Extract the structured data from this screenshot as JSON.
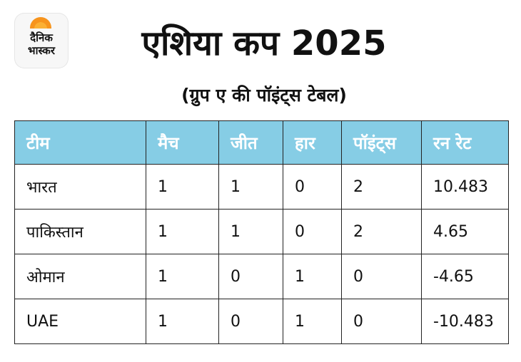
{
  "logo": {
    "line1": "दैनिक",
    "line2": "भास्कर"
  },
  "title": "एशिया कप 2025",
  "subtitle": "(ग्रुप ए की पॉइंट्स टेबल)",
  "table": {
    "headers": [
      "टीम",
      "मैच",
      "जीत",
      "हार",
      "पॉइंट्स",
      "रन रेट"
    ],
    "rows": [
      [
        "भारत",
        "1",
        "1",
        "0",
        "2",
        "10.483"
      ],
      [
        "पाकिस्तान",
        "1",
        "1",
        "0",
        "2",
        "4.65"
      ],
      [
        "ओमान",
        "1",
        "0",
        "1",
        "0",
        "-4.65"
      ],
      [
        "UAE",
        "1",
        "0",
        "1",
        "0",
        "-10.483"
      ]
    ]
  },
  "colors": {
    "header_bg": "#86cde5",
    "header_text": "#ffffff",
    "logo_accent": "#f7941d"
  }
}
